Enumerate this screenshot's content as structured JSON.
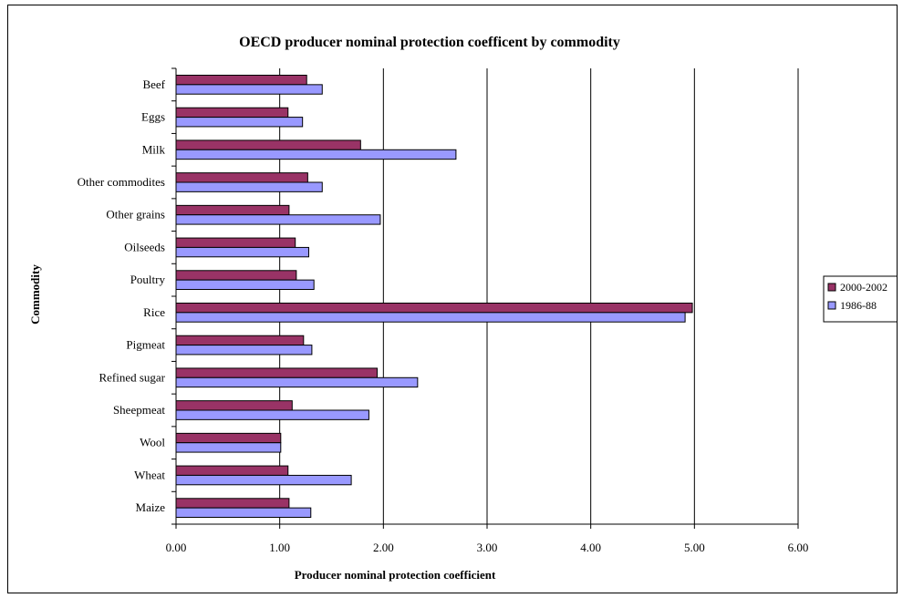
{
  "chart_data": {
    "type": "bar",
    "orientation": "horizontal",
    "title": "OECD producer nominal protection coefficent by commodity",
    "xlabel": "Producer nominal protection coefficient",
    "ylabel": "Commodity",
    "xlim": [
      0,
      6
    ],
    "xticks": [
      "0.00",
      "1.00",
      "2.00",
      "3.00",
      "4.00",
      "5.00",
      "6.00"
    ],
    "grid": "vertical",
    "legend_position": "right",
    "categories": [
      "Beef",
      "Eggs",
      "Milk",
      "Other commodites",
      "Other grains",
      "Oilseeds",
      "Poultry",
      "Rice",
      "Pigmeat",
      "Refined sugar",
      "Sheepmeat",
      "Wool",
      "Wheat",
      "Maize"
    ],
    "series": [
      {
        "name": "2000-2002",
        "color": "#993366",
        "values": [
          1.26,
          1.08,
          1.78,
          1.27,
          1.09,
          1.15,
          1.16,
          4.98,
          1.23,
          1.94,
          1.12,
          1.01,
          1.08,
          1.09
        ]
      },
      {
        "name": "1986-88",
        "color": "#9999ff",
        "values": [
          1.41,
          1.22,
          2.7,
          1.41,
          1.97,
          1.28,
          1.33,
          4.91,
          1.31,
          2.33,
          1.86,
          1.01,
          1.69,
          1.3
        ]
      }
    ]
  }
}
